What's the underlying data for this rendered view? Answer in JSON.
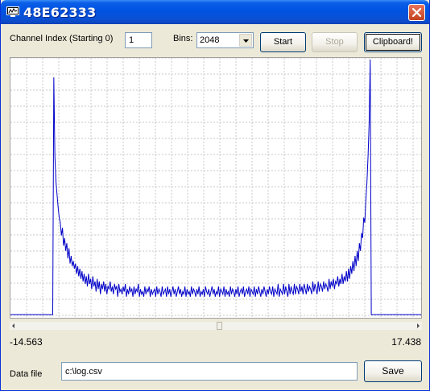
{
  "window": {
    "title": "48E62333"
  },
  "controls": {
    "channel_label": "Channel Index (Starting 0)",
    "channel_value": "1",
    "bins_label": "Bins:",
    "bins_value": "2048",
    "start_label": "Start",
    "stop_label": "Stop",
    "clipboard_label": "Clipboard!"
  },
  "axis": {
    "min_label": "-14.563",
    "max_label": "17.438"
  },
  "datafile": {
    "label": "Data file",
    "path": "c:\\log.csv",
    "save_label": "Save"
  },
  "colors": {
    "series": "#0000c8",
    "grid": "#c8c8c8"
  },
  "chart_data": {
    "type": "line",
    "x_range": [
      -14.563,
      17.438
    ],
    "y_range": [
      0,
      1
    ],
    "grid": true,
    "series": [
      {
        "values": [
          0,
          0,
          0,
          0,
          0,
          0,
          0,
          0,
          0,
          0,
          0,
          0,
          0,
          0,
          0,
          0,
          0,
          0,
          0,
          0,
          0,
          0,
          0,
          0,
          0,
          0,
          0,
          0,
          0,
          0,
          0,
          0,
          0,
          0,
          0,
          0,
          0,
          0,
          0,
          0,
          0.93,
          0.62,
          0.52,
          0.47,
          0.42,
          0.38,
          0.36,
          0.31,
          0.34,
          0.27,
          0.3,
          0.25,
          0.28,
          0.22,
          0.26,
          0.2,
          0.23,
          0.19,
          0.21,
          0.18,
          0.2,
          0.16,
          0.19,
          0.15,
          0.18,
          0.14,
          0.17,
          0.13,
          0.16,
          0.12,
          0.15,
          0.11,
          0.16,
          0.12,
          0.14,
          0.1,
          0.15,
          0.11,
          0.13,
          0.09,
          0.14,
          0.1,
          0.13,
          0.08,
          0.12,
          0.1,
          0.13,
          0.09,
          0.12,
          0.08,
          0.11,
          0.1,
          0.13,
          0.09,
          0.11,
          0.08,
          0.12,
          0.1,
          0.11,
          0.07,
          0.12,
          0.09,
          0.1,
          0.08,
          0.11,
          0.09,
          0.12,
          0.07,
          0.1,
          0.08,
          0.11,
          0.09,
          0.1,
          0.07,
          0.11,
          0.08,
          0.1,
          0.09,
          0.12,
          0.07,
          0.1,
          0.08,
          0.09,
          0.07,
          0.11,
          0.08,
          0.1,
          0.09,
          0.11,
          0.07,
          0.1,
          0.08,
          0.09,
          0.1,
          0.07,
          0.11,
          0.08,
          0.1,
          0.09,
          0.07,
          0.11,
          0.08,
          0.09,
          0.1,
          0.07,
          0.11,
          0.08,
          0.1,
          0.07,
          0.09,
          0.11,
          0.08,
          0.1,
          0.07,
          0.09,
          0.11,
          0.08,
          0.1,
          0.07,
          0.09,
          0.08,
          0.11,
          0.07,
          0.1,
          0.08,
          0.09,
          0.07,
          0.11,
          0.08,
          0.1,
          0.09,
          0.07,
          0.1,
          0.08,
          0.11,
          0.07,
          0.09,
          0.08,
          0.1,
          0.07,
          0.11,
          0.09,
          0.08,
          0.1,
          0.07,
          0.09,
          0.11,
          0.08,
          0.1,
          0.07,
          0.09,
          0.08,
          0.11,
          0.07,
          0.1,
          0.09,
          0.08,
          0.11,
          0.07,
          0.1,
          0.08,
          0.09,
          0.07,
          0.11,
          0.08,
          0.1,
          0.09,
          0.07,
          0.1,
          0.08,
          0.11,
          0.07,
          0.09,
          0.1,
          0.08,
          0.11,
          0.07,
          0.09,
          0.1,
          0.08,
          0.11,
          0.07,
          0.1,
          0.09,
          0.08,
          0.11,
          0.07,
          0.1,
          0.08,
          0.11,
          0.09,
          0.07,
          0.1,
          0.08,
          0.11,
          0.09,
          0.07,
          0.1,
          0.08,
          0.11,
          0.09,
          0.08,
          0.11,
          0.07,
          0.1,
          0.09,
          0.08,
          0.12,
          0.07,
          0.1,
          0.09,
          0.08,
          0.12,
          0.08,
          0.11,
          0.09,
          0.07,
          0.12,
          0.08,
          0.11,
          0.09,
          0.08,
          0.12,
          0.08,
          0.11,
          0.1,
          0.08,
          0.12,
          0.09,
          0.11,
          0.08,
          0.12,
          0.1,
          0.08,
          0.12,
          0.09,
          0.11,
          0.1,
          0.08,
          0.13,
          0.09,
          0.12,
          0.1,
          0.08,
          0.13,
          0.09,
          0.12,
          0.11,
          0.09,
          0.13,
          0.1,
          0.12,
          0.11,
          0.09,
          0.14,
          0.1,
          0.13,
          0.11,
          0.14,
          0.1,
          0.13,
          0.12,
          0.15,
          0.11,
          0.14,
          0.12,
          0.16,
          0.12,
          0.15,
          0.13,
          0.17,
          0.13,
          0.18,
          0.14,
          0.19,
          0.16,
          0.21,
          0.17,
          0.23,
          0.19,
          0.25,
          0.21,
          0.28,
          0.25,
          0.32,
          0.3,
          0.38,
          0.36,
          0.45,
          0.52,
          0.62,
          0.75,
          1.0,
          0,
          0,
          0,
          0,
          0,
          0,
          0,
          0,
          0,
          0,
          0,
          0,
          0,
          0,
          0,
          0,
          0,
          0,
          0,
          0,
          0,
          0,
          0,
          0,
          0,
          0,
          0,
          0,
          0,
          0,
          0,
          0,
          0,
          0,
          0,
          0,
          0,
          0,
          0,
          0,
          0,
          0,
          0,
          0,
          0,
          0,
          0
        ]
      }
    ]
  },
  "scrollbar": {
    "position": 0.51
  }
}
